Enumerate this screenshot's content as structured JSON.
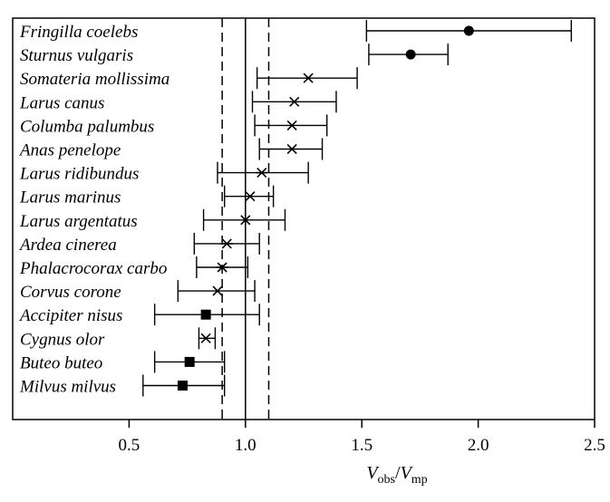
{
  "chart_data": {
    "type": "scatter",
    "title": "",
    "xlabel": {
      "num_var": "V",
      "num_sub": "obs",
      "sep": "/",
      "den_var": "V",
      "den_sub": "mp"
    },
    "xlim": [
      0.0,
      2.5
    ],
    "x_ticks": [
      {
        "value": 0.5,
        "label": "0.5"
      },
      {
        "value": 1.0,
        "label": "1.0"
      },
      {
        "value": 1.5,
        "label": "1.5"
      },
      {
        "value": 2.0,
        "label": "2.0"
      },
      {
        "value": 2.5,
        "label": "2.5"
      }
    ],
    "reference_line": 1.0,
    "dashed_lines": [
      0.9,
      1.1
    ],
    "grid": false,
    "legend": "none",
    "marker_types": [
      "circle",
      "cross",
      "asterisk",
      "square"
    ],
    "species": [
      {
        "name": "Fringilla coelebs",
        "value": 1.96,
        "low": 1.52,
        "high": 2.4,
        "marker": "circle"
      },
      {
        "name": "Sturnus vulgaris",
        "value": 1.71,
        "low": 1.53,
        "high": 1.87,
        "marker": "circle"
      },
      {
        "name": "Somateria mollissima",
        "value": 1.27,
        "low": 1.05,
        "high": 1.48,
        "marker": "cross"
      },
      {
        "name": "Larus canus",
        "value": 1.21,
        "low": 1.03,
        "high": 1.39,
        "marker": "cross"
      },
      {
        "name": "Columba palumbus",
        "value": 1.2,
        "low": 1.04,
        "high": 1.35,
        "marker": "cross"
      },
      {
        "name": "Anas penelope",
        "value": 1.2,
        "low": 1.06,
        "high": 1.33,
        "marker": "cross"
      },
      {
        "name": "Larus ridibundus",
        "value": 1.07,
        "low": 0.88,
        "high": 1.27,
        "marker": "asterisk"
      },
      {
        "name": "Larus marinus",
        "value": 1.02,
        "low": 0.91,
        "high": 1.12,
        "marker": "cross"
      },
      {
        "name": "Larus argentatus",
        "value": 1.0,
        "low": 0.82,
        "high": 1.17,
        "marker": "cross"
      },
      {
        "name": "Ardea cinerea",
        "value": 0.92,
        "low": 0.78,
        "high": 1.06,
        "marker": "asterisk"
      },
      {
        "name": "Phalacrocorax carbo",
        "value": 0.9,
        "low": 0.79,
        "high": 1.01,
        "marker": "asterisk"
      },
      {
        "name": "Corvus corone",
        "value": 0.88,
        "low": 0.71,
        "high": 1.04,
        "marker": "cross"
      },
      {
        "name": "Accipiter nisus",
        "value": 0.83,
        "low": 0.61,
        "high": 1.06,
        "marker": "square"
      },
      {
        "name": "Cygnus olor",
        "value": 0.83,
        "low": 0.8,
        "high": 0.87,
        "marker": "cross"
      },
      {
        "name": "Buteo buteo",
        "value": 0.76,
        "low": 0.61,
        "high": 0.91,
        "marker": "square"
      },
      {
        "name": "Milvus milvus",
        "value": 0.73,
        "low": 0.56,
        "high": 0.91,
        "marker": "square"
      }
    ]
  }
}
